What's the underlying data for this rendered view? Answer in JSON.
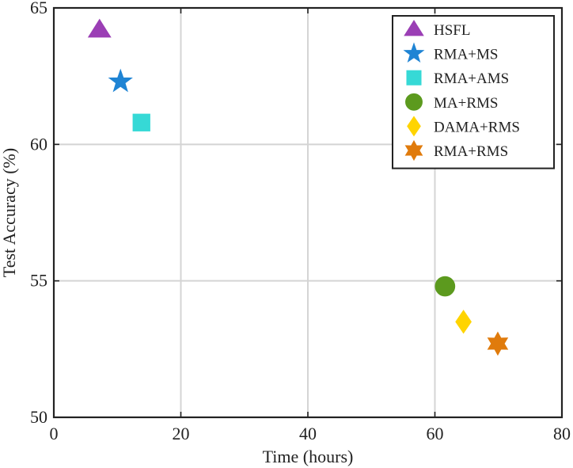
{
  "chart_data": {
    "type": "scatter",
    "title": "",
    "xlabel": "Time (hours)",
    "ylabel": "Test Accuracy (%)",
    "xlim": [
      0,
      80
    ],
    "ylim": [
      50,
      65
    ],
    "xticks": [
      0,
      20,
      40,
      60,
      80
    ],
    "yticks": [
      50,
      55,
      60,
      65
    ],
    "grid": true,
    "legend_position": "top-right",
    "series": [
      {
        "name": "HSFL",
        "x": 7.2,
        "y": 64.2,
        "marker": "triangle",
        "color": "#9b3fb5"
      },
      {
        "name": "RMA+MS",
        "x": 10.5,
        "y": 62.3,
        "marker": "star",
        "color": "#1f84d4"
      },
      {
        "name": "RMA+AMS",
        "x": 13.8,
        "y": 60.8,
        "marker": "square",
        "color": "#36d9d6"
      },
      {
        "name": "MA+RMS",
        "x": 61.6,
        "y": 54.8,
        "marker": "circle",
        "color": "#5c9a1e"
      },
      {
        "name": "DAMA+RMS",
        "x": 64.5,
        "y": 53.5,
        "marker": "diamond",
        "color": "#ffd400"
      },
      {
        "name": "RMA+RMS",
        "x": 69.9,
        "y": 52.7,
        "marker": "hexagram",
        "color": "#e07b0c"
      }
    ]
  }
}
